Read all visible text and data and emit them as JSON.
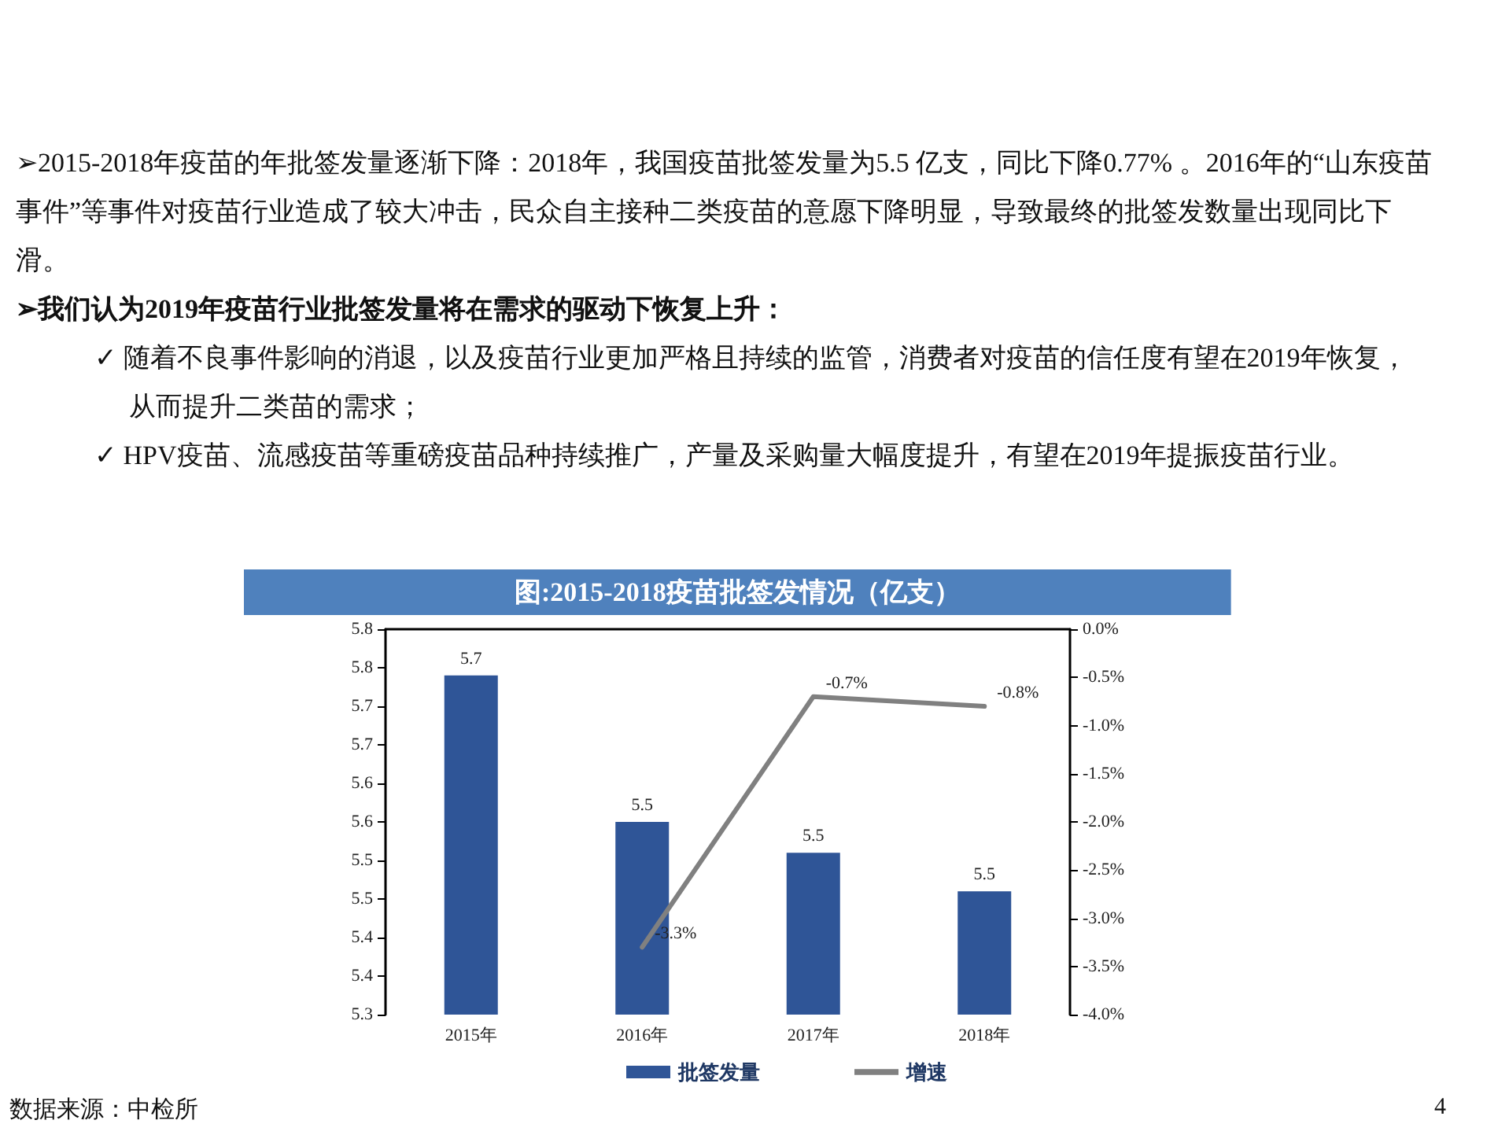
{
  "chart_data": {
    "type": "bar",
    "title": "图:2015-2018疫苗批签发情况（亿支）",
    "annotations": [
      "➢2015-2018年疫苗的年批签发量逐渐下降：2018年，我国疫苗批签发量为5.5 亿支，同比下降0.77% 。2016年的“山东疫苗事件”等事件对疫苗行业造成了较大冲击，民众自主接种二类疫苗的意愿下降明显，导致最终的批签发数量出现同比下滑。",
      "➢我们认为2019年疫苗行业批签发量将在需求的驱动下恢复上升：",
      "✓ 随着不良事件影响的消退，以及疫苗行业更加严格且持续的监管，消费者对疫苗的信任度有望在2019年恢复，从而提升二类苗的需求；",
      "✓ HPV疫苗、流感疫苗等重磅疫苗品种持续推广，产量及采购量大幅度提升，有望在2019年提振疫苗行业。",
      "数据来源：中检所",
      "4"
    ],
    "categories": [
      "2015年",
      "2016年",
      "2017年",
      "2018年"
    ],
    "series": [
      {
        "name": "批签发量",
        "color": "#2f5597",
        "values": [
          5.74,
          5.55,
          5.51,
          5.46
        ],
        "value_labels": [
          "5.7",
          "5.5",
          "5.5",
          "5.5"
        ]
      },
      {
        "name": "增速",
        "type": "line",
        "axis": "y2",
        "color": "#808080",
        "values": [
          null,
          -3.3,
          -0.7,
          -0.8
        ],
        "value_labels": [
          null,
          "-3.3%",
          "-0.7%",
          "-0.8%"
        ]
      }
    ],
    "ylim": [
      5.3,
      5.8
    ],
    "yticks": [
      {
        "value": 5.3,
        "label": "5.3"
      },
      {
        "value": 5.35,
        "label": "5.4"
      },
      {
        "value": 5.4,
        "label": "5.4"
      },
      {
        "value": 5.45,
        "label": "5.5"
      },
      {
        "value": 5.5,
        "label": "5.5"
      },
      {
        "value": 5.55,
        "label": "5.6"
      },
      {
        "value": 5.6,
        "label": "5.6"
      },
      {
        "value": 5.65,
        "label": "5.7"
      },
      {
        "value": 5.7,
        "label": "5.7"
      },
      {
        "value": 5.75,
        "label": "5.8"
      },
      {
        "value": 5.8,
        "label": "5.8"
      }
    ],
    "y2lim": [
      -4,
      0
    ],
    "y2ticks": [
      {
        "value": -4,
        "label": "-4.0%"
      },
      {
        "value": -3.5,
        "label": "-3.5%"
      },
      {
        "value": -3,
        "label": "-3.0%"
      },
      {
        "value": -2.5,
        "label": "-2.5%"
      },
      {
        "value": -2,
        "label": "-2.0%"
      },
      {
        "value": -1.5,
        "label": "-1.5%"
      },
      {
        "value": -1,
        "label": "-1.0%"
      },
      {
        "value": -0.5,
        "label": "-0.5%"
      },
      {
        "value": 0,
        "label": "0.0%"
      }
    ],
    "grid": false,
    "legend": "bottom",
    "marker": "none",
    "line_style": "solid"
  }
}
